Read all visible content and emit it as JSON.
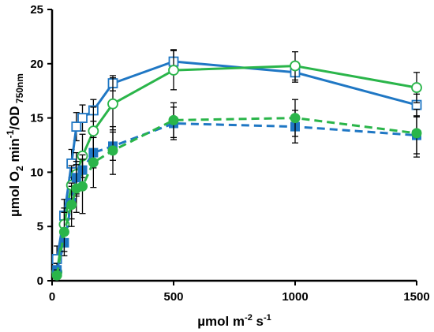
{
  "chart_data": {
    "type": "line",
    "xlabel": {
      "base": "µmol m",
      "sup1": "-2",
      "mid": " s",
      "sup2": "-1"
    },
    "ylabel": {
      "p1": "µmol O",
      "sub1": "2",
      "p2": " min",
      "sup1": "-1",
      "p3": "/OD",
      "sub2": " 750nm"
    },
    "xlim": [
      0,
      1500
    ],
    "ylim": [
      0,
      25
    ],
    "xticks": [
      0,
      500,
      1000,
      1500
    ],
    "yticks": [
      0,
      5,
      10,
      15,
      20,
      25
    ],
    "grid": false,
    "legend": "none",
    "series": [
      {
        "style": "solid",
        "marker": "open-square",
        "color": "#1f77c4",
        "x": [
          20,
          50,
          80,
          100,
          125,
          170,
          250,
          500,
          1000,
          1500
        ],
        "y": [
          2.0,
          6.0,
          10.8,
          14.2,
          15.0,
          15.7,
          18.2,
          20.2,
          19.2,
          16.2
        ],
        "err": [
          1.2,
          1.5,
          1.3,
          1.3,
          1.2,
          1.0,
          0.7,
          1.1,
          0.9,
          1.0
        ]
      },
      {
        "style": "solid",
        "marker": "open-circle",
        "color": "#2ab54a",
        "x": [
          20,
          50,
          80,
          100,
          125,
          170,
          250,
          500,
          1000,
          1500
        ],
        "y": [
          0.8,
          5.2,
          8.8,
          9.8,
          11.5,
          13.8,
          16.3,
          19.4,
          19.8,
          17.8
        ],
        "err": [
          0.8,
          1.5,
          1.8,
          2.0,
          2.0,
          2.2,
          2.4,
          1.8,
          1.3,
          1.4
        ]
      },
      {
        "style": "dashed",
        "marker": "filled-square",
        "color": "#1f77c4",
        "x": [
          20,
          50,
          80,
          100,
          125,
          170,
          250,
          500,
          1000,
          1500
        ],
        "y": [
          1.0,
          3.5,
          7.2,
          9.5,
          10.2,
          11.8,
          12.4,
          14.5,
          14.2,
          13.4
        ],
        "err": [
          0.6,
          1.2,
          1.5,
          1.5,
          1.4,
          1.4,
          1.3,
          1.5,
          1.5,
          1.7
        ]
      },
      {
        "style": "dashed",
        "marker": "filled-circle",
        "color": "#2ab54a",
        "x": [
          20,
          50,
          80,
          100,
          125,
          170,
          250,
          500,
          1000,
          1500
        ],
        "y": [
          0.5,
          4.5,
          7.0,
          8.5,
          8.7,
          10.9,
          12.0,
          14.8,
          15.0,
          13.6
        ],
        "err": [
          0.5,
          1.8,
          2.0,
          2.2,
          2.5,
          2.3,
          2.2,
          1.6,
          1.7,
          2.2
        ]
      }
    ]
  }
}
